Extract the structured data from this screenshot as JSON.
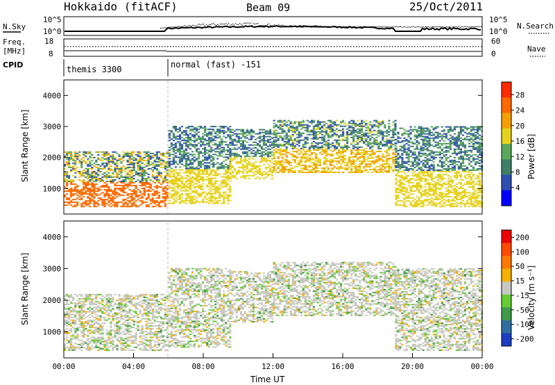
{
  "header": {
    "station": "Hokkaido (fitACF)",
    "beam": "Beam 09",
    "date": "25/Oct/2011"
  },
  "status_panel": {
    "nsky_label": "N.Sky",
    "nsky_ticks": [
      "10^5",
      "10^0"
    ],
    "nsearch_label": "N.Search",
    "nsearch_ticks": [
      "10^5",
      "10^0"
    ],
    "freq_label_1": "Freq.",
    "freq_label_2": "[MHz]",
    "freq_ticks": [
      "18",
      "8"
    ],
    "nave_label": "Nave",
    "nave_ticks": [
      "60",
      "0"
    ],
    "cpid_label": "CPID",
    "cpid_segments": [
      {
        "start_hour": 0,
        "text": "themis 3300"
      },
      {
        "start_hour": 6,
        "text": "normal (fast) -151"
      }
    ]
  },
  "chart_data": [
    {
      "type": "heatmap",
      "name": "power",
      "ylabel": "Slant Range [km]",
      "yticks": [
        "1000",
        "2000",
        "3000",
        "4000"
      ],
      "ylim": [
        180,
        4500
      ],
      "xlim_hours": [
        0,
        24
      ],
      "colorbar_label": "Power [dB]",
      "colorbar_ticks": [
        "4",
        "8",
        "12",
        "16",
        "20",
        "24",
        "28"
      ],
      "colorbar_colors": [
        "#0000ff",
        "#2e4fb0",
        "#3f7f6a",
        "#5aa85a",
        "#e6d21e",
        "#f5a000",
        "#ff6a00",
        "#ff2a00"
      ],
      "echo_bands_km": [
        {
          "from_hour": 0,
          "to_hour": 6,
          "lower": 400,
          "upper": 2200,
          "level_db": 28
        },
        {
          "from_hour": 6,
          "to_hour": 9.5,
          "lower": 500,
          "upper": 3000,
          "level_db": 20
        },
        {
          "from_hour": 9.5,
          "to_hour": 12,
          "lower": 1300,
          "upper": 2900,
          "level_db": 20
        },
        {
          "from_hour": 12,
          "to_hour": 19,
          "lower": 1500,
          "upper": 3200,
          "level_db": 22
        },
        {
          "from_hour": 19,
          "to_hour": 24,
          "lower": 400,
          "upper": 3000,
          "level_db": 20
        }
      ]
    },
    {
      "type": "heatmap",
      "name": "velocity",
      "ylabel": "Slant Range [km]",
      "yticks": [
        "1000",
        "2000",
        "3000",
        "4000"
      ],
      "ylim": [
        180,
        4500
      ],
      "xlim_hours": [
        0,
        24
      ],
      "xlabel": "Time UT",
      "xticks": [
        "00:00",
        "04:00",
        "08:00",
        "12:00",
        "16:00",
        "20:00",
        "00:00"
      ],
      "colorbar_label": "Velocity [m s⁻¹]",
      "colorbar_ticks": [
        "200",
        "100",
        "50",
        "15",
        "-15",
        "-50",
        "-100",
        "-200"
      ],
      "colorbar_colors": [
        "#1b3fbf",
        "#2f6fa0",
        "#3f9a4a",
        "#66cc33",
        "#c8c8c0",
        "#f5b000",
        "#ff7a00",
        "#ff4a00",
        "#ee0000"
      ]
    }
  ]
}
